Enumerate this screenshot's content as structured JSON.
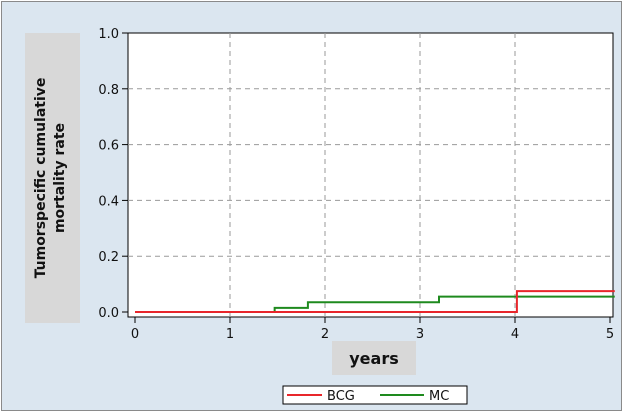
{
  "chart_data": {
    "type": "line",
    "step": true,
    "title": "",
    "xlabel": "years",
    "ylabel_lines": [
      "Tumorspecific cumulative",
      "mortality rate"
    ],
    "xlim": [
      0,
      5
    ],
    "ylim": [
      0,
      1
    ],
    "xticks": [
      0,
      1,
      2,
      3,
      4,
      5
    ],
    "yticks": [
      0.0,
      0.2,
      0.4,
      0.6,
      0.8,
      1.0
    ],
    "ytick_labels": [
      "0.0",
      "0.2",
      "0.4",
      "0.6",
      "0.8",
      "1.0"
    ],
    "grid": true,
    "legend_position": "bottom",
    "series": [
      {
        "name": "BCG",
        "color": "#e8262b",
        "x": [
          0,
          4.02,
          5.05
        ],
        "y": [
          0.0,
          0.075,
          0.075
        ]
      },
      {
        "name": "MC",
        "color": "#1e8a1e",
        "x": [
          0,
          1.47,
          1.82,
          3.2,
          4.02,
          5.05
        ],
        "y": [
          0.0,
          0.015,
          0.035,
          0.055,
          0.055,
          0.055
        ]
      }
    ]
  }
}
